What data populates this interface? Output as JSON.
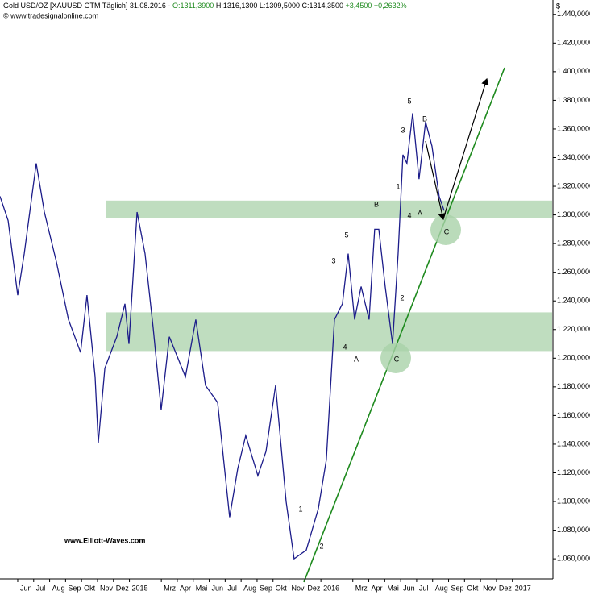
{
  "chart_data": {
    "type": "line",
    "header": [
      "Gold USD/OZ [XAUUSD GTM  Täglich] 31.08.2016 -",
      "O:1311,3900",
      "H:1316,1300",
      "L:1309,5000",
      "C:1314,3500",
      "+3,4500 +0,2632%"
    ],
    "source": "© www.tradesignalonline.com",
    "currency": "$",
    "watermark": "www.Elliott-Waves.com",
    "x": [
      3.89,
      4.4,
      5.0,
      5.41,
      6.16,
      6.67,
      7.43,
      8.18,
      8.94,
      9.34,
      9.85,
      10.05,
      10.46,
      11.21,
      11.72,
      11.97,
      12.48,
      12.98,
      13.49,
      13.99,
      14.5,
      15.51,
      16.16,
      16.77,
      17.53,
      18.28,
      18.79,
      19.29,
      20.05,
      20.56,
      21.16,
      21.82,
      22.32,
      23.08,
      23.84,
      24.34,
      24.85,
      25.35,
      25.71,
      26.11,
      26.52,
      27.02,
      27.37,
      27.63,
      28.03,
      28.49,
      28.84,
      29.14,
      29.39,
      29.75,
      30.15,
      30.56,
      30.96,
      31.41,
      31.72
    ],
    "series": [
      {
        "name": "Gold USD/OZ",
        "color": "#1c1c8a",
        "values": [
          1313,
          1296,
          1244,
          1273,
          1336,
          1302,
          1267,
          1227,
          1204,
          1244,
          1187,
          1141,
          1193,
          1215,
          1238,
          1210,
          1302,
          1273,
          1221,
          1164,
          1215,
          1187,
          1227,
          1181,
          1169,
          1089,
          1123,
          1146,
          1118,
          1135,
          1181,
          1100,
          1060,
          1066,
          1095,
          1129,
          1227,
          1238,
          1273,
          1227,
          1250,
          1227,
          1290,
          1290,
          1250,
          1210,
          1273,
          1342,
          1336,
          1371,
          1325,
          1365,
          1348,
          1313,
          1303
        ]
      }
    ],
    "zones": [
      [
        1298,
        1310
      ],
      [
        1205,
        1232
      ]
    ],
    "zone_color": "#a9d2a9",
    "annotations": [
      "5",
      "3",
      "B",
      "1",
      "4",
      "A",
      "B",
      "5",
      "3",
      "2",
      "4",
      "A",
      "C",
      "C",
      "1",
      "2"
    ],
    "xlim": [
      3.89,
      38.54
    ],
    "ylim": [
      1046,
      1450
    ],
    "xticks": [
      {
        "value": 5,
        "label": "Jun"
      },
      {
        "value": 6,
        "label": "Jul"
      },
      {
        "value": 7,
        "label": "Aug"
      },
      {
        "value": 8,
        "label": "Sep"
      },
      {
        "value": 9,
        "label": "Okt"
      },
      {
        "value": 10,
        "label": "Nov"
      },
      {
        "value": 11,
        "label": "Dez"
      },
      {
        "value": 12,
        "label": "2015"
      },
      {
        "value": 14,
        "label": "Mrz"
      },
      {
        "value": 15,
        "label": "Apr"
      },
      {
        "value": 16,
        "label": "Mai"
      },
      {
        "value": 17,
        "label": "Jun"
      },
      {
        "value": 18,
        "label": "Jul"
      },
      {
        "value": 19,
        "label": "Aug"
      },
      {
        "value": 20,
        "label": "Sep"
      },
      {
        "value": 21,
        "label": "Okt"
      },
      {
        "value": 22,
        "label": "Nov"
      },
      {
        "value": 23,
        "label": "Dez"
      },
      {
        "value": 24,
        "label": "2016"
      },
      {
        "value": 26,
        "label": "Mrz"
      },
      {
        "value": 27,
        "label": "Apr"
      },
      {
        "value": 28,
        "label": "Mai"
      },
      {
        "value": 29,
        "label": "Jun"
      },
      {
        "value": 30,
        "label": "Jul"
      },
      {
        "value": 31,
        "label": "Aug"
      },
      {
        "value": 32,
        "label": "Sep"
      },
      {
        "value": 33,
        "label": "Okt"
      },
      {
        "value": 34,
        "label": "Nov"
      },
      {
        "value": 35,
        "label": "Dez"
      },
      {
        "value": 36,
        "label": "2017"
      }
    ],
    "yticks": [
      {
        "value": 1060,
        "label": "1.060,0000"
      },
      {
        "value": 1080,
        "label": "1.080,0000"
      },
      {
        "value": 1100,
        "label": "1.100,0000"
      },
      {
        "value": 1120,
        "label": "1.120,0000"
      },
      {
        "value": 1140,
        "label": "1.140,0000"
      },
      {
        "value": 1160,
        "label": "1.160,0000"
      },
      {
        "value": 1180,
        "label": "1.180,0000"
      },
      {
        "value": 1200,
        "label": "1.200,0000"
      },
      {
        "value": 1220,
        "label": "1.220,0000"
      },
      {
        "value": 1240,
        "label": "1.240,0000"
      },
      {
        "value": 1260,
        "label": "1.260,0000"
      },
      {
        "value": 1280,
        "label": "1.280,0000"
      },
      {
        "value": 1300,
        "label": "1.300,0000"
      },
      {
        "value": 1320,
        "label": "1.320,0000"
      },
      {
        "value": 1340,
        "label": "1.340,0000"
      },
      {
        "value": 1360,
        "label": "1.360,0000"
      },
      {
        "value": 1380,
        "label": "1.380,0000"
      },
      {
        "value": 1400,
        "label": "1.400,0000"
      },
      {
        "value": 1420,
        "label": "1.420,0000"
      },
      {
        "value": 1440,
        "label": "1.440,0000"
      }
    ]
  }
}
